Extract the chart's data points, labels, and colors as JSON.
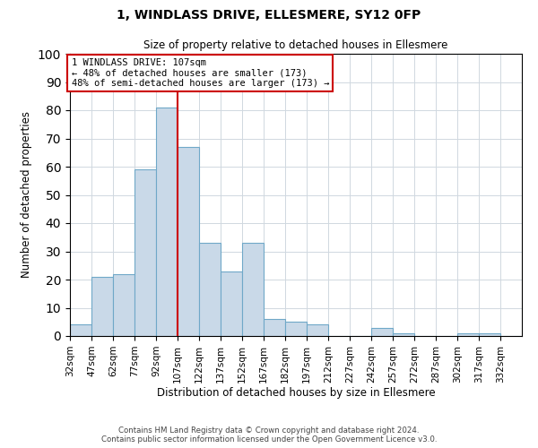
{
  "title1": "1, WINDLASS DRIVE, ELLESMERE, SY12 0FP",
  "title2": "Size of property relative to detached houses in Ellesmere",
  "xlabel": "Distribution of detached houses by size in Ellesmere",
  "ylabel": "Number of detached properties",
  "bin_labels": [
    "32sqm",
    "47sqm",
    "62sqm",
    "77sqm",
    "92sqm",
    "107sqm",
    "122sqm",
    "137sqm",
    "152sqm",
    "167sqm",
    "182sqm",
    "197sqm",
    "212sqm",
    "227sqm",
    "242sqm",
    "257sqm",
    "272sqm",
    "287sqm",
    "302sqm",
    "317sqm",
    "332sqm"
  ],
  "bin_edges": [
    32,
    47,
    62,
    77,
    92,
    107,
    122,
    137,
    152,
    167,
    182,
    197,
    212,
    227,
    242,
    257,
    272,
    287,
    302,
    317,
    332,
    347
  ],
  "bar_heights": [
    4,
    21,
    22,
    59,
    81,
    67,
    33,
    23,
    33,
    6,
    5,
    4,
    0,
    0,
    3,
    1,
    0,
    0,
    1,
    1,
    0
  ],
  "bar_color": "#c9d9e8",
  "bar_edge_color": "#6fa8c8",
  "property_line_x": 107,
  "property_line_color": "#cc0000",
  "annotation_title": "1 WINDLASS DRIVE: 107sqm",
  "annotation_line1": "← 48% of detached houses are smaller (173)",
  "annotation_line2": "48% of semi-detached houses are larger (173) →",
  "annotation_box_color": "#cc0000",
  "ylim": [
    0,
    100
  ],
  "yticks": [
    0,
    10,
    20,
    30,
    40,
    50,
    60,
    70,
    80,
    90,
    100
  ],
  "footer1": "Contains HM Land Registry data © Crown copyright and database right 2024.",
  "footer2": "Contains public sector information licensed under the Open Government Licence v3.0.",
  "bg_color": "#ffffff",
  "grid_color": "#d0d8e0"
}
